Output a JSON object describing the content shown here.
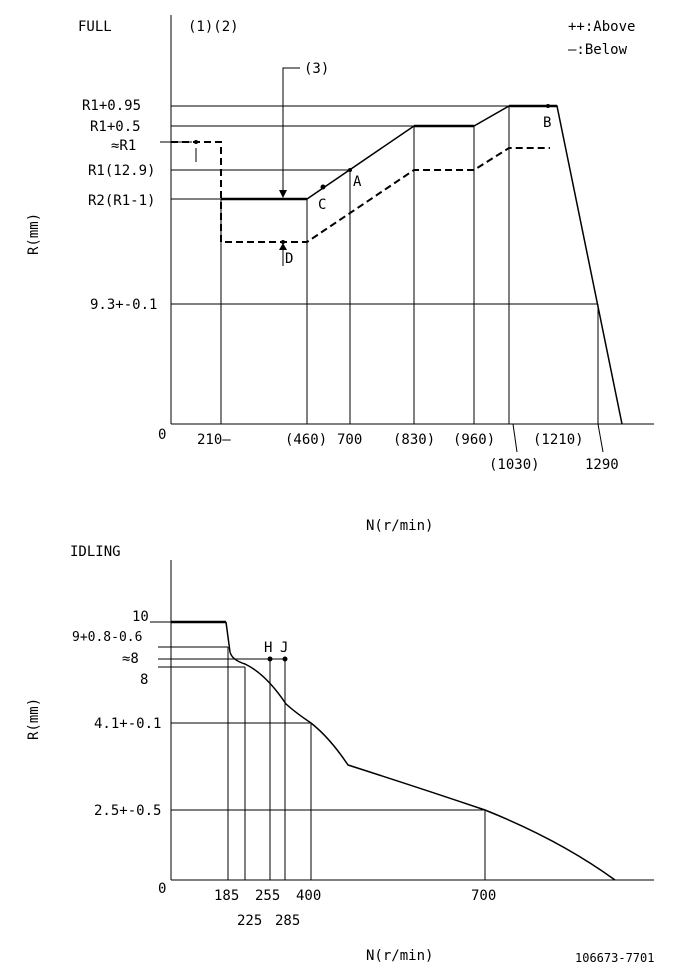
{
  "full": {
    "title": "FULL",
    "notes": "(1)(2)",
    "legend_above": "++:Above",
    "legend_below": "—:Below",
    "callout": "(3)",
    "ylabel": "R(mm)",
    "xlabel": "N(r/min)",
    "origin": "0",
    "y_ticks": [
      "R1+0.95",
      "R1+0.5",
      "≈R1",
      "R1(12.9)",
      "R2(R1-1)",
      "9.3+-0.1"
    ],
    "x_ticks": [
      "210—",
      "(460)",
      "700",
      "(830)",
      "(960)",
      "(1030)",
      "(1210)",
      "1290"
    ],
    "points": [
      "A",
      "B",
      "C",
      "D",
      "I"
    ]
  },
  "idling": {
    "title": "IDLING",
    "ylabel": "R(mm)",
    "xlabel": "N(r/min)",
    "origin": "0",
    "y_ticks": [
      "10",
      "9+0.8-0.6",
      "≈8",
      "8",
      "4.1+-0.1",
      "2.5+-0.5"
    ],
    "x_ticks": [
      "185",
      "225",
      "255",
      "285",
      "400",
      "700"
    ],
    "points": [
      "H",
      "J"
    ]
  },
  "part_number": "106673-7701"
}
